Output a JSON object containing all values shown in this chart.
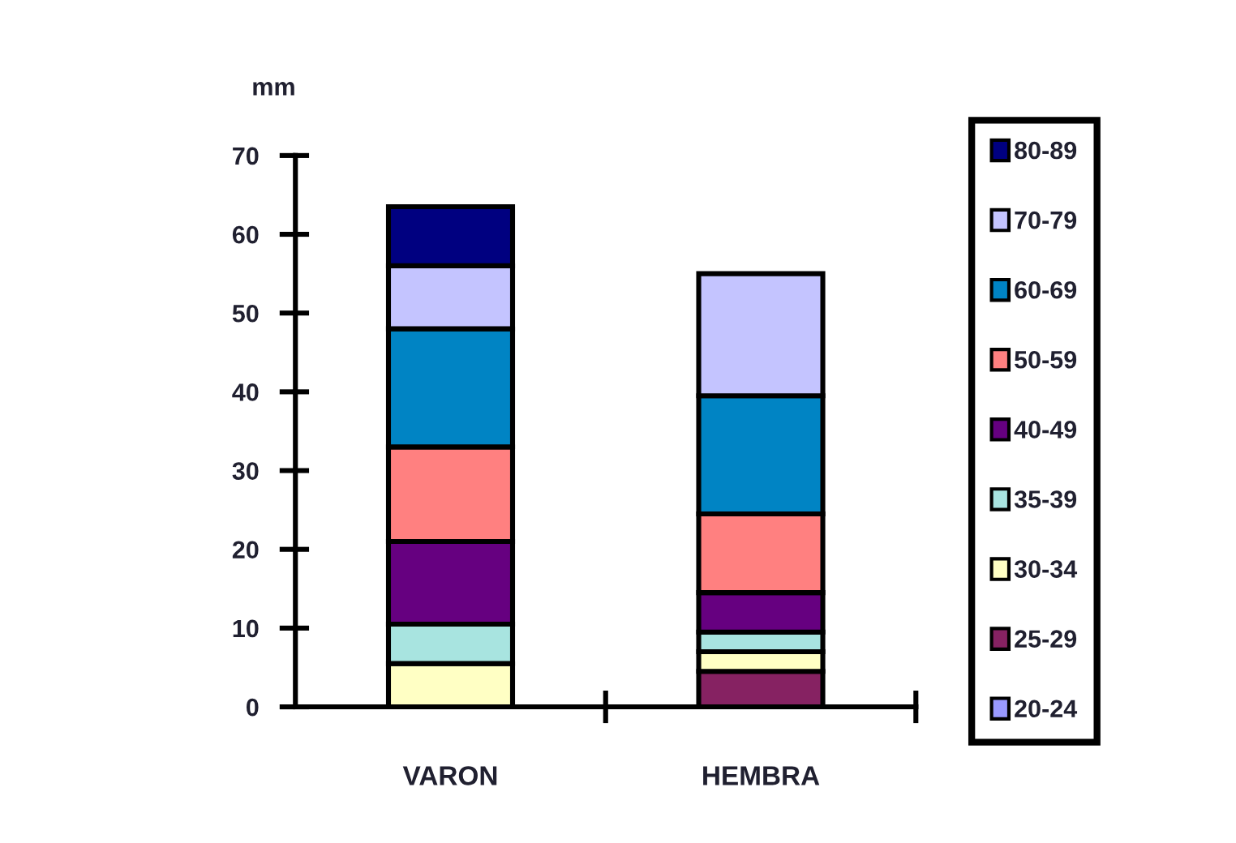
{
  "chart_data": {
    "type": "bar",
    "stacked": true,
    "ylabel": "mm",
    "categories": [
      "VARON",
      "HEMBRA"
    ],
    "ylim": [
      0,
      70
    ],
    "yticks": [
      0,
      10,
      20,
      30,
      40,
      50,
      60,
      70
    ],
    "legend": "right",
    "grid": false,
    "series": [
      {
        "name": "20-24",
        "color": "#9999ff",
        "values": [
          null,
          null
        ]
      },
      {
        "name": "25-29",
        "color": "#862262",
        "values": [
          null,
          4.5
        ]
      },
      {
        "name": "30-34",
        "color": "#ffffc4",
        "values": [
          5.5,
          2.5
        ]
      },
      {
        "name": "35-39",
        "color": "#a8e4e0",
        "values": [
          5,
          2.5
        ]
      },
      {
        "name": "40-49",
        "color": "#660080",
        "values": [
          10.5,
          5
        ]
      },
      {
        "name": "50-59",
        "color": "#ff8080",
        "values": [
          12,
          10
        ]
      },
      {
        "name": "60-69",
        "color": "#0084c4",
        "values": [
          15,
          15
        ]
      },
      {
        "name": "70-79",
        "color": "#c4c4ff",
        "values": [
          8,
          15.5
        ]
      },
      {
        "name": "80-89",
        "color": "#000080",
        "values": [
          7.5,
          null
        ]
      }
    ]
  }
}
